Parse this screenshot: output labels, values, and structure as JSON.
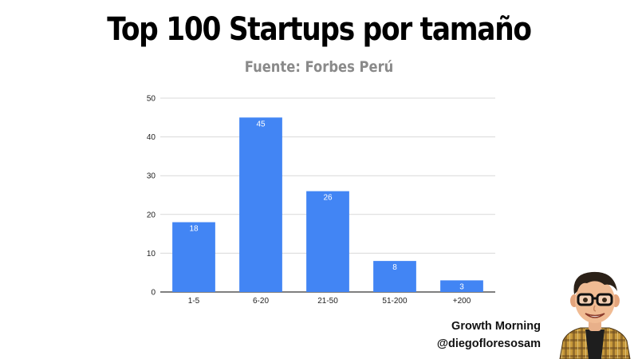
{
  "header": {
    "title": "Top 100 Startups por tamaño",
    "subtitle": "Fuente: Forbes Perú"
  },
  "chart_data": {
    "type": "bar",
    "title": "Top 100 Startups por tamaño",
    "subtitle": "Fuente: Forbes Perú",
    "categories": [
      "1-5",
      "6-20",
      "21-50",
      "51-200",
      "+200"
    ],
    "values": [
      18,
      45,
      26,
      8,
      3
    ],
    "data_labels": [
      "18",
      "45",
      "26",
      "8",
      "3"
    ],
    "xlabel": "",
    "ylabel": "",
    "ylim": [
      0,
      50
    ],
    "yticks": [
      0,
      10,
      20,
      30,
      40,
      50
    ],
    "grid": true,
    "legend": "none",
    "bar_color": "#4285f4"
  },
  "credits": {
    "brand": "Growth Morning",
    "handle": "@diegofloresosam"
  },
  "colors": {
    "bar": "#4285f4",
    "gridline": "#d9d9d9",
    "axis": "#333333",
    "subtitle": "#8a8a8a"
  },
  "avatar": {
    "icon": "cartoon-avatar-icon"
  }
}
